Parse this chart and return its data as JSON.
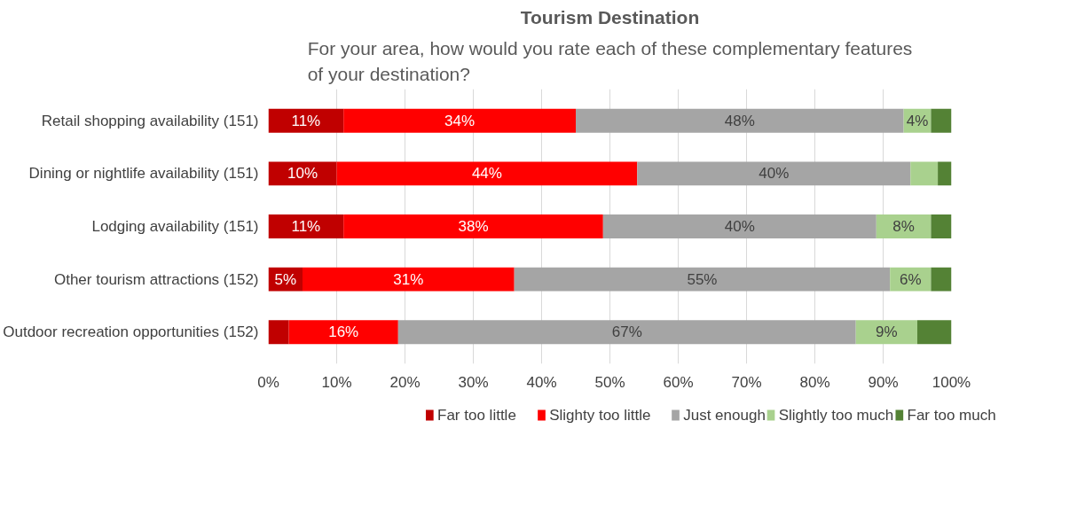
{
  "chart_data": {
    "type": "bar",
    "orientation": "horizontal",
    "stacked": true,
    "title": "Tourism Destination",
    "subtitle": "For your area, how would you rate each of these complementary features of your destination?",
    "categories": [
      "Retail shopping availability (151)",
      "Dining or nightlife availability (151)",
      "Lodging availability (151)",
      "Other tourism attractions (152)",
      "Outdoor recreation opportunities (152)"
    ],
    "series": [
      {
        "name": "Far too little",
        "color": "#c00000",
        "values": [
          11,
          10,
          11,
          5,
          3
        ],
        "value_labels": [
          "11%",
          "10%",
          "11%",
          "5%",
          null
        ]
      },
      {
        "name": "Slighty too little",
        "color": "#ff0000",
        "values": [
          34,
          44,
          38,
          31,
          16
        ],
        "value_labels": [
          "34%",
          "44%",
          "38%",
          "31%",
          "16%"
        ]
      },
      {
        "name": "Just enough",
        "color": "#a5a5a5",
        "values": [
          48,
          40,
          40,
          55,
          67
        ],
        "value_labels": [
          "48%",
          "40%",
          "40%",
          "55%",
          "67%"
        ]
      },
      {
        "name": "Slightly too much",
        "color": "#a9d18e",
        "values": [
          4,
          4,
          8,
          6,
          9
        ],
        "value_labels": [
          "4%",
          null,
          "8%",
          "6%",
          "9%"
        ]
      },
      {
        "name": "Far too much",
        "color": "#548235",
        "values": [
          3,
          2,
          3,
          3,
          5
        ],
        "value_labels": [
          null,
          null,
          null,
          null,
          null
        ]
      }
    ],
    "xlim": [
      0,
      100
    ],
    "xticks": [
      {
        "value": 0,
        "label": "0%"
      },
      {
        "value": 10,
        "label": "10%"
      },
      {
        "value": 20,
        "label": "20%"
      },
      {
        "value": 30,
        "label": "30%"
      },
      {
        "value": 40,
        "label": "40%"
      },
      {
        "value": 50,
        "label": "50%"
      },
      {
        "value": 60,
        "label": "60%"
      },
      {
        "value": 70,
        "label": "70%"
      },
      {
        "value": 80,
        "label": "80%"
      },
      {
        "value": 90,
        "label": "90%"
      },
      {
        "value": 100,
        "label": "100%"
      }
    ],
    "grid": "x",
    "legend": "bottom"
  }
}
